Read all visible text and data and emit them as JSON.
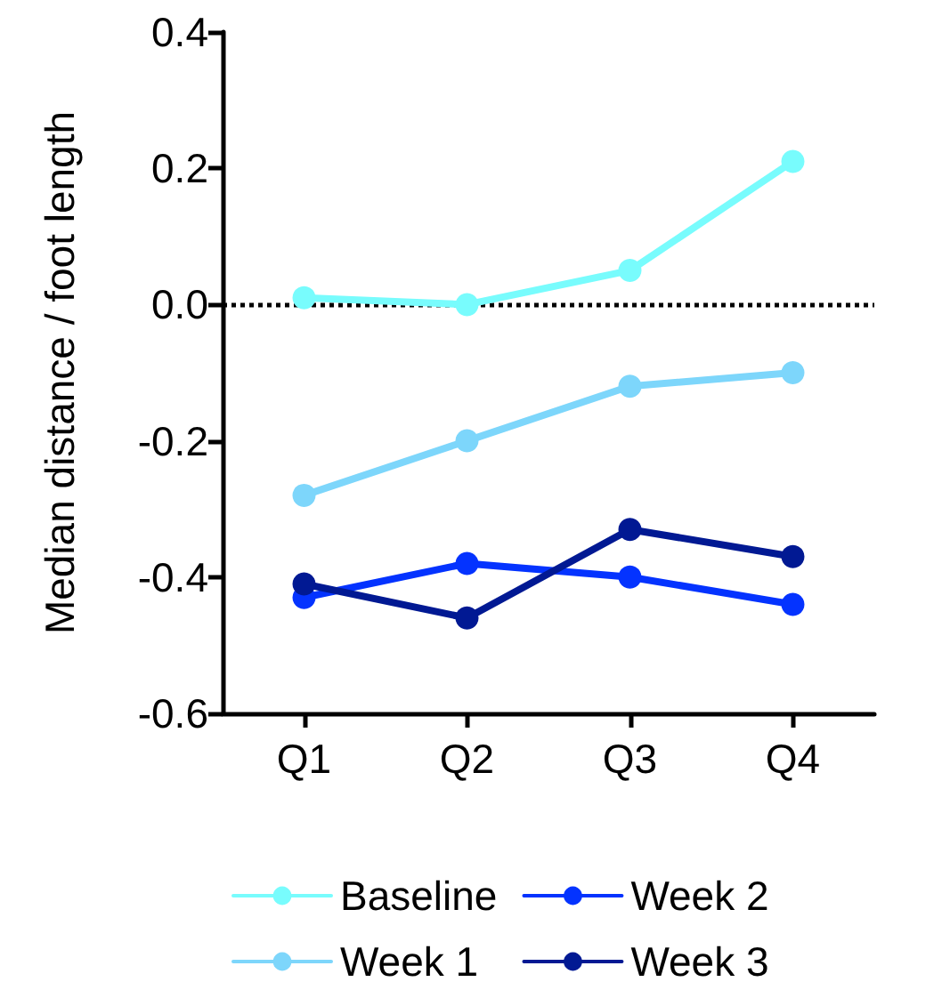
{
  "chart_data": {
    "type": "line",
    "ylabel": "Median distance / foot length",
    "categories": [
      "Q1",
      "Q2",
      "Q3",
      "Q4"
    ],
    "series": [
      {
        "name": "Baseline",
        "color": "#78fcfd",
        "values": [
          0.01,
          0.0,
          0.05,
          0.21
        ]
      },
      {
        "name": "Week 1",
        "color": "#7dd6fb",
        "values": [
          -0.28,
          -0.2,
          -0.12,
          -0.1
        ]
      },
      {
        "name": "Week 2",
        "color": "#0433ff",
        "values": [
          -0.43,
          -0.38,
          -0.4,
          -0.44
        ]
      },
      {
        "name": "Week 3",
        "color": "#011993",
        "values": [
          -0.41,
          -0.46,
          -0.33,
          -0.37
        ]
      }
    ],
    "ylim": [
      -0.6,
      0.4
    ],
    "yticks": [
      {
        "value": -0.6,
        "label": "-0.6"
      },
      {
        "value": -0.4,
        "label": "-0.4"
      },
      {
        "value": -0.2,
        "label": "-0.2"
      },
      {
        "value": 0,
        "label": "0.0"
      },
      {
        "value": 0.2,
        "label": "0.2"
      },
      {
        "value": 0.4,
        "label": "0.4"
      }
    ],
    "ref_lines": [
      {
        "axis": "y",
        "value": 0,
        "color": "#000000",
        "line_style": "dotted"
      }
    ],
    "grid": false,
    "legend": "bottom",
    "marker": "circle",
    "line_style": "solid"
  }
}
